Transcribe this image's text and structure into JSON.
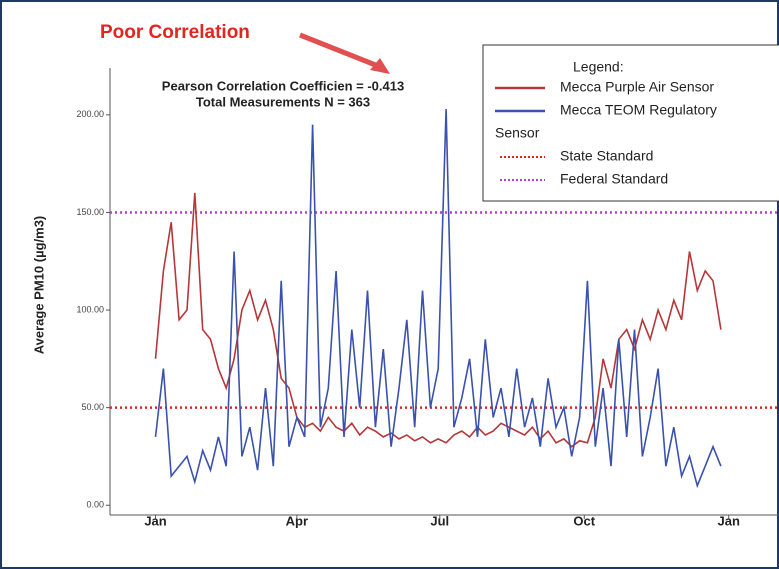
{
  "chart_data": {
    "type": "line",
    "annotations": [
      "Poor Correlation",
      "Pearson Correlation Coefficien = -0.413",
      "Total Measurements N = 363"
    ],
    "ylabel": "Average PM10 (µg/m3)",
    "legend_title": "Legend:",
    "legend_subtitle": "Sensor",
    "x": [
      0,
      5,
      10,
      15,
      20,
      25,
      30,
      35,
      40,
      45,
      50,
      55,
      60,
      65,
      70,
      75,
      80,
      85,
      90,
      95,
      100,
      105,
      110,
      115,
      120,
      125,
      130,
      135,
      140,
      145,
      150,
      155,
      160,
      165,
      170,
      175,
      180,
      185,
      190,
      195,
      200,
      205,
      210,
      215,
      220,
      225,
      230,
      235,
      240,
      245,
      250,
      255,
      260,
      265,
      270,
      275,
      280,
      285,
      290,
      295,
      300,
      305,
      310,
      315,
      320,
      325,
      330,
      335,
      340,
      345,
      350,
      355,
      360
    ],
    "series": [
      {
        "name": "Mecca Purple Air Sensor",
        "color": "#b5373a",
        "values": [
          75,
          120,
          145,
          95,
          100,
          160,
          90,
          85,
          70,
          60,
          75,
          100,
          110,
          95,
          105,
          90,
          65,
          60,
          45,
          40,
          42,
          38,
          45,
          40,
          38,
          42,
          36,
          40,
          38,
          35,
          37,
          34,
          36,
          33,
          35,
          32,
          34,
          32,
          36,
          38,
          35,
          40,
          36,
          38,
          42,
          40,
          38,
          36,
          40,
          34,
          38,
          32,
          34,
          30,
          33,
          32,
          45,
          75,
          60,
          85,
          90,
          80,
          95,
          85,
          100,
          90,
          105,
          95,
          130,
          110,
          120,
          115,
          90
        ]
      },
      {
        "name": "Mecca TEOM Regulatory",
        "color": "#3a52ad",
        "values": [
          35,
          70,
          15,
          20,
          25,
          12,
          28,
          18,
          35,
          20,
          130,
          25,
          40,
          18,
          60,
          20,
          115,
          30,
          45,
          35,
          195,
          40,
          60,
          120,
          35,
          90,
          50,
          110,
          40,
          80,
          30,
          60,
          95,
          40,
          110,
          50,
          70,
          203,
          40,
          55,
          75,
          35,
          85,
          45,
          60,
          35,
          70,
          40,
          55,
          30,
          65,
          40,
          50,
          25,
          45,
          115,
          30,
          60,
          20,
          85,
          35,
          90,
          25,
          45,
          70,
          20,
          40,
          15,
          25,
          10,
          20,
          30,
          20
        ]
      }
    ],
    "reference_lines": [
      {
        "name": "State Standard",
        "value": 50,
        "color": "#e0261f"
      },
      {
        "name": "Federal Standard",
        "value": 150,
        "color": "#b43fd0"
      }
    ],
    "xlim": [
      -29,
      397
    ],
    "xticks": [
      {
        "value": 0,
        "label": "Jan"
      },
      {
        "value": 90,
        "label": "Apr"
      },
      {
        "value": 181,
        "label": "Jul"
      },
      {
        "value": 273,
        "label": "Oct"
      },
      {
        "value": 365,
        "label": "Jan"
      }
    ],
    "ylim": [
      -5,
      224
    ],
    "yticks": [
      {
        "value": 0,
        "label": "0.00"
      },
      {
        "value": 50,
        "label": "50.00"
      },
      {
        "value": 100,
        "label": "100.00"
      },
      {
        "value": 150,
        "label": "150.00"
      },
      {
        "value": 200,
        "label": "200.00"
      }
    ]
  }
}
